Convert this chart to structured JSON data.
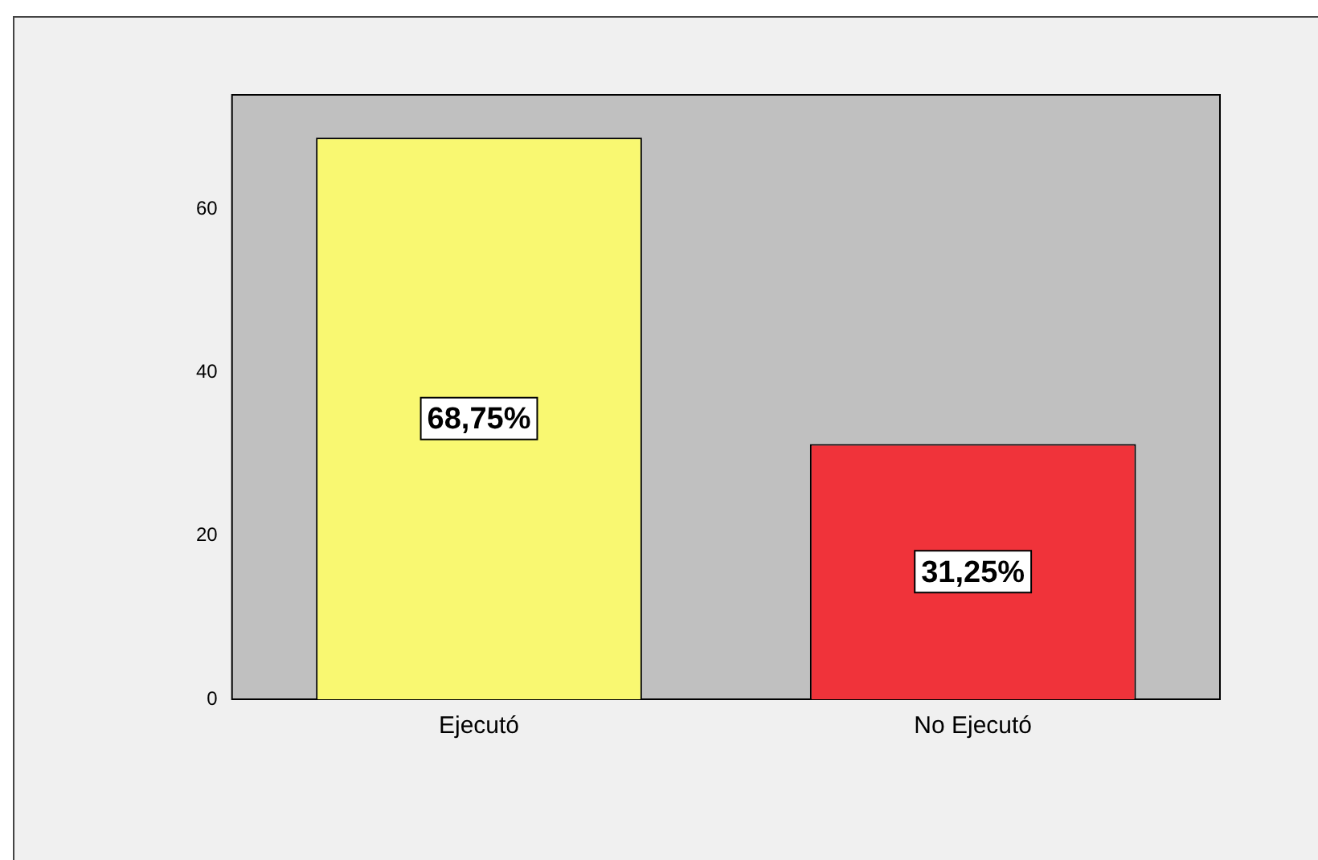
{
  "chart_data": {
    "type": "bar",
    "categories": [
      "Ejecutó",
      "No Ejecutó"
    ],
    "colors": [
      "#f9f871",
      "#f0333a"
    ],
    "values": [
      68.75,
      31.25
    ],
    "value_labels": [
      "68,75%",
      "31,25%"
    ],
    "ylim": [
      0,
      74
    ],
    "yticks": [
      0,
      20,
      40,
      60
    ],
    "grid": false,
    "legend": false
  }
}
